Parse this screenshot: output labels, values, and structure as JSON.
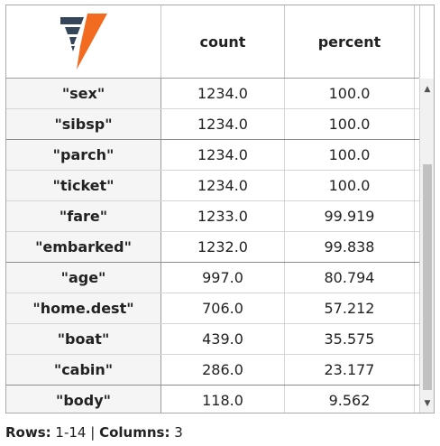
{
  "header": {
    "logo_icon": "brand-v-logo-icon",
    "columns": [
      "count",
      "percent"
    ]
  },
  "colors": {
    "logo_dark": "#36465a",
    "logo_orange": "#f26b21",
    "name_bg": "#f5f5f5",
    "scroll_thumb": "#c1c1c1"
  },
  "rows": [
    {
      "name": "\"sex\"",
      "count": "1234.0",
      "percent": "100.0"
    },
    {
      "name": "\"sibsp\"",
      "count": "1234.0",
      "percent": "100.0"
    },
    {
      "name": "\"parch\"",
      "count": "1234.0",
      "percent": "100.0"
    },
    {
      "name": "\"ticket\"",
      "count": "1234.0",
      "percent": "100.0"
    },
    {
      "name": "\"fare\"",
      "count": "1233.0",
      "percent": "99.919"
    },
    {
      "name": "\"embarked\"",
      "count": "1232.0",
      "percent": "99.838"
    },
    {
      "name": "\"age\"",
      "count": "997.0",
      "percent": "80.794"
    },
    {
      "name": "\"home.dest\"",
      "count": "706.0",
      "percent": "57.212"
    },
    {
      "name": "\"boat\"",
      "count": "439.0",
      "percent": "35.575"
    },
    {
      "name": "\"cabin\"",
      "count": "286.0",
      "percent": "23.177"
    },
    {
      "name": "\"body\"",
      "count": "118.0",
      "percent": "9.562"
    }
  ],
  "scrollbar": {
    "up_icon": "triangle-up-icon",
    "down_icon": "triangle-down-icon"
  },
  "footer": {
    "rows_label": "Rows:",
    "rows_value": "1-14",
    "divider": "|",
    "columns_label": "Columns:",
    "columns_value": "3"
  }
}
